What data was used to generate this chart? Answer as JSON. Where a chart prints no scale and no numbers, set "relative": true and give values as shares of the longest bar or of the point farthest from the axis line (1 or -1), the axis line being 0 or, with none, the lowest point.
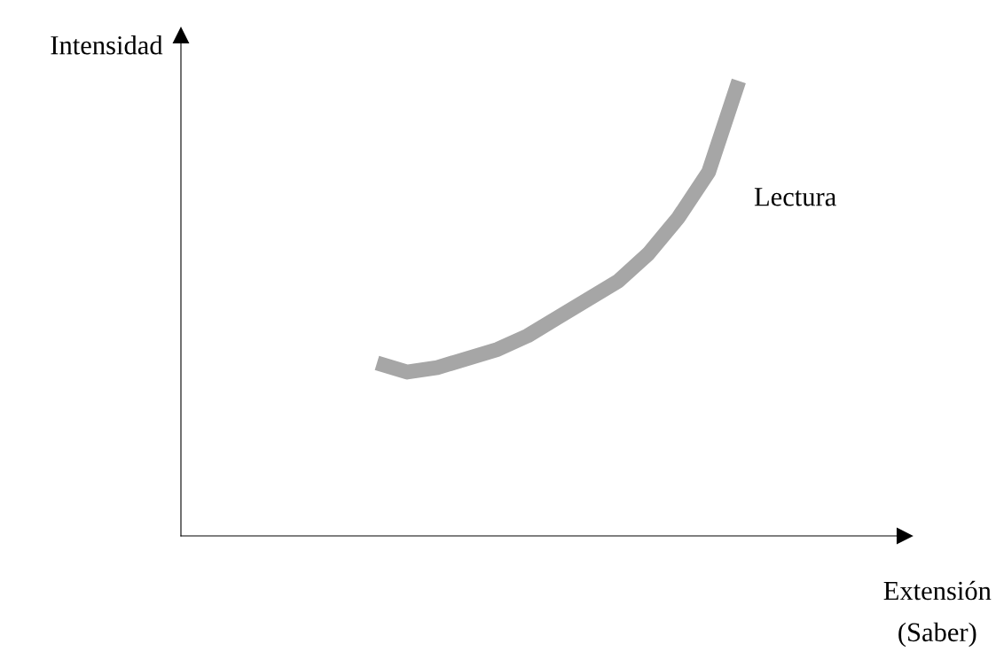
{
  "chart_data": {
    "type": "line",
    "relative": true,
    "xlabel": "Extensión\n(Saber)",
    "ylabel": "Intensidad",
    "categories": [
      null,
      null,
      null,
      null,
      null,
      null,
      null,
      null,
      null,
      null,
      null,
      null,
      null,
      null,
      null,
      null,
      null,
      null,
      null,
      null,
      null,
      null,
      null,
      null
    ],
    "series": [
      {
        "name": "Lectura",
        "color": "#a6a6a6",
        "values": [
          null,
          null,
          null,
          null,
          null,
          null,
          0.38,
          0.36,
          0.37,
          0.39,
          0.41,
          0.44,
          0.48,
          0.52,
          0.56,
          0.62,
          0.7,
          0.8,
          1.0,
          null,
          null,
          null,
          null,
          null
        ]
      }
    ],
    "legend": false,
    "marker": "none",
    "line_style": "solid"
  }
}
